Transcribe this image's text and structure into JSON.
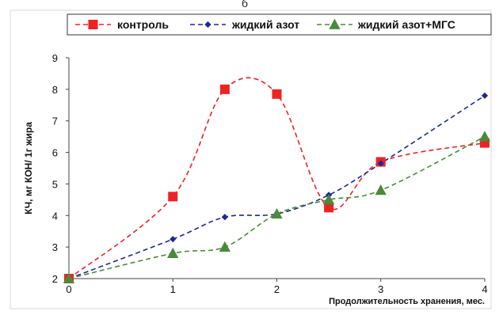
{
  "figure_label": "б",
  "chart_data": {
    "type": "line",
    "title": "",
    "xlabel": "Продолжительность хранения, мес.",
    "ylabel": "КЧ, мг  КОН/ 1г жира",
    "xlim": [
      0,
      4
    ],
    "ylim": [
      2,
      9
    ],
    "x_ticks": [
      "0",
      "1",
      "2",
      "3",
      "4"
    ],
    "y_ticks": [
      "2",
      "3",
      "4",
      "5",
      "6",
      "7",
      "8",
      "9"
    ],
    "grid": false,
    "legend_position": "top",
    "series": [
      {
        "name": "контроль",
        "color": "#ee2222",
        "marker": "square",
        "line_style": "dashed",
        "x": [
          0,
          1,
          1.5,
          2,
          2.5,
          3,
          4
        ],
        "y": [
          2.0,
          4.6,
          8.0,
          7.85,
          4.25,
          5.7,
          6.3
        ]
      },
      {
        "name": "жидкий азот",
        "color": "#1a2a9a",
        "marker": "diamond",
        "line_style": "dashed",
        "x": [
          0,
          1,
          1.5,
          2,
          2.5,
          3,
          4
        ],
        "y": [
          2.0,
          3.25,
          3.95,
          4.05,
          4.65,
          5.65,
          7.8
        ]
      },
      {
        "name": "жидкий азот+МГС",
        "color": "#4a8a3a",
        "marker": "triangle",
        "line_style": "dashed",
        "x": [
          0,
          1,
          1.5,
          2,
          2.5,
          3,
          4
        ],
        "y": [
          2.0,
          2.8,
          3.0,
          4.05,
          4.5,
          4.8,
          6.5
        ]
      }
    ]
  }
}
